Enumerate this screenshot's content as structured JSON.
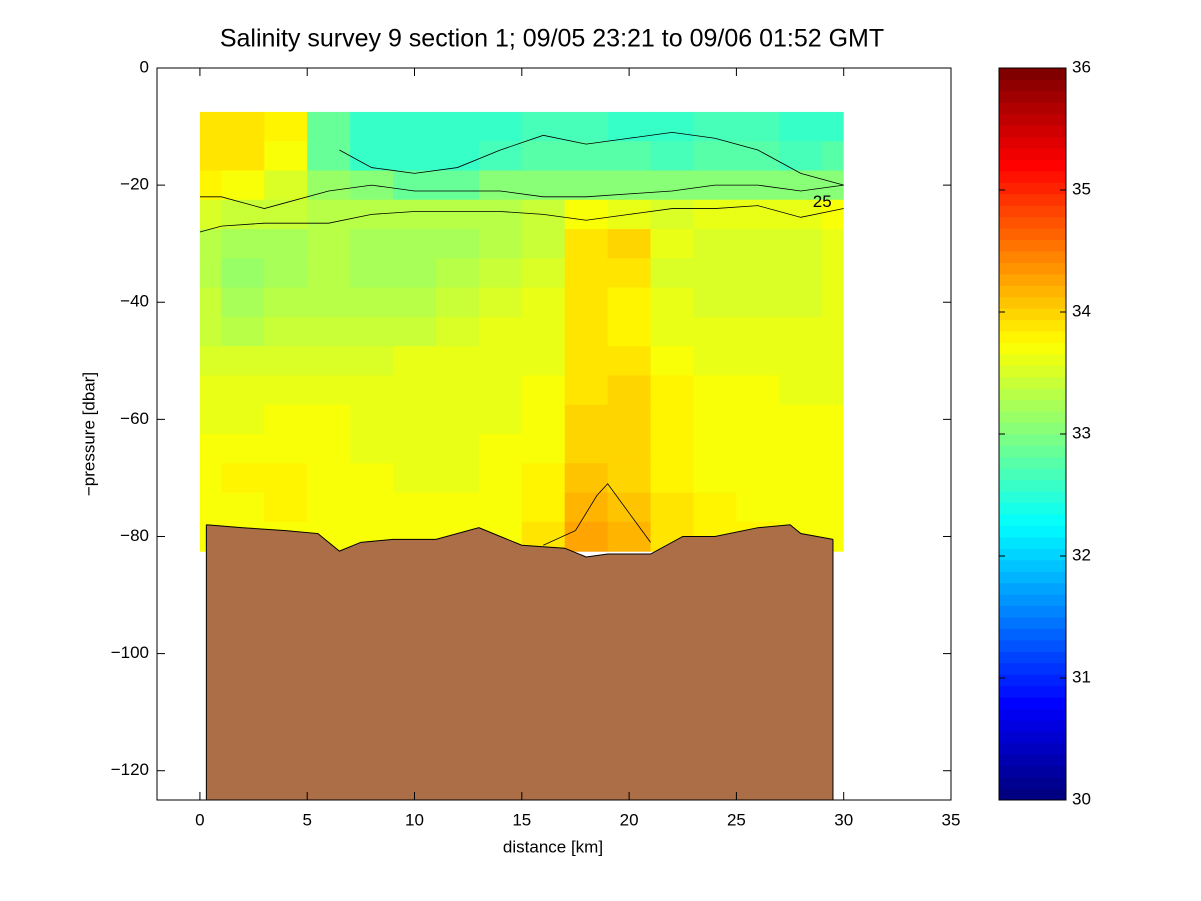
{
  "chart_data": {
    "type": "contourf",
    "title": "Salinity survey 9 section 1; 09/05 23:21 to 09/06 01:52 GMT",
    "x_label": "distance [km]",
    "y_label": "−pressure [dbar]",
    "xlim": [
      -2,
      35
    ],
    "ylim": [
      -125,
      0
    ],
    "xticks": [
      0,
      5,
      10,
      15,
      20,
      25,
      30,
      35
    ],
    "yticks": [
      {
        "value": -120,
        "label": "−120"
      },
      {
        "value": -100,
        "label": "−100"
      },
      {
        "value": -80,
        "label": "−80"
      },
      {
        "value": -60,
        "label": "−60"
      },
      {
        "value": -40,
        "label": "−40"
      },
      {
        "value": -20,
        "label": "−20"
      },
      0
    ],
    "clim": [
      30,
      36
    ],
    "cticks": [
      30,
      31,
      32,
      33,
      34,
      35,
      36
    ],
    "colormap": "jet",
    "x": [
      0,
      2,
      4,
      6,
      8,
      10,
      12,
      14,
      16,
      18,
      20,
      22,
      24,
      26,
      28,
      30
    ],
    "y": [
      -10,
      -15,
      -20,
      -25,
      -30,
      -35,
      -40,
      -45,
      -50,
      -55,
      -60,
      -65,
      -70,
      -75,
      -80
    ],
    "z": [
      [
        33.9,
        33.9,
        33.8,
        32.9,
        32.6,
        32.6,
        32.6,
        32.6,
        32.7,
        32.7,
        32.6,
        32.6,
        32.7,
        32.7,
        32.6,
        32.6
      ],
      [
        33.9,
        33.9,
        33.7,
        32.9,
        32.6,
        32.6,
        32.6,
        32.7,
        32.8,
        32.8,
        32.8,
        32.7,
        32.8,
        32.8,
        32.7,
        32.8
      ],
      [
        33.8,
        33.7,
        33.5,
        33.1,
        33.0,
        32.9,
        32.9,
        33.0,
        33.0,
        33.0,
        33.0,
        33.0,
        33.0,
        33.0,
        33.0,
        33.0
      ],
      [
        33.5,
        33.4,
        33.4,
        33.3,
        33.3,
        33.3,
        33.3,
        33.3,
        33.4,
        33.7,
        33.6,
        33.5,
        33.6,
        33.6,
        33.6,
        33.7
      ],
      [
        33.3,
        33.2,
        33.2,
        33.3,
        33.2,
        33.2,
        33.2,
        33.3,
        33.4,
        33.9,
        34.0,
        33.6,
        33.5,
        33.5,
        33.5,
        33.6
      ],
      [
        33.3,
        33.1,
        33.2,
        33.3,
        33.2,
        33.2,
        33.3,
        33.4,
        33.5,
        33.9,
        33.9,
        33.5,
        33.5,
        33.5,
        33.5,
        33.6
      ],
      [
        33.4,
        33.2,
        33.3,
        33.3,
        33.3,
        33.3,
        33.4,
        33.5,
        33.6,
        33.9,
        33.8,
        33.6,
        33.5,
        33.5,
        33.5,
        33.6
      ],
      [
        33.4,
        33.3,
        33.4,
        33.4,
        33.4,
        33.4,
        33.5,
        33.6,
        33.6,
        33.9,
        33.8,
        33.6,
        33.6,
        33.6,
        33.6,
        33.6
      ],
      [
        33.5,
        33.5,
        33.5,
        33.5,
        33.5,
        33.6,
        33.6,
        33.6,
        33.6,
        33.9,
        33.9,
        33.7,
        33.6,
        33.6,
        33.6,
        33.6
      ],
      [
        33.6,
        33.6,
        33.6,
        33.6,
        33.6,
        33.6,
        33.6,
        33.6,
        33.7,
        33.9,
        34.0,
        33.8,
        33.7,
        33.7,
        33.6,
        33.6
      ],
      [
        33.6,
        33.6,
        33.7,
        33.7,
        33.6,
        33.6,
        33.6,
        33.6,
        33.7,
        34.0,
        34.0,
        33.8,
        33.7,
        33.7,
        33.7,
        33.7
      ],
      [
        33.7,
        33.7,
        33.7,
        33.7,
        33.6,
        33.6,
        33.6,
        33.7,
        33.7,
        34.0,
        34.0,
        33.8,
        33.7,
        33.7,
        33.7,
        33.7
      ],
      [
        33.7,
        33.8,
        33.8,
        33.7,
        33.7,
        33.6,
        33.6,
        33.7,
        33.8,
        34.1,
        34.0,
        33.8,
        33.7,
        33.7,
        33.7,
        33.7
      ],
      [
        33.7,
        33.7,
        33.8,
        33.7,
        33.7,
        33.7,
        33.7,
        33.7,
        33.8,
        34.2,
        34.1,
        33.9,
        33.8,
        33.7,
        33.7,
        33.7
      ],
      [
        33.7,
        33.7,
        33.7,
        33.7,
        33.7,
        33.7,
        33.7,
        33.7,
        33.9,
        34.3,
        34.2,
        33.9,
        33.8,
        33.8,
        33.7,
        33.7
      ]
    ],
    "bottom": {
      "color": "#ab6e47",
      "x": [
        0.3,
        2,
        4,
        5.5,
        6,
        6.5,
        7.5,
        9,
        11,
        13,
        14,
        15,
        17,
        18,
        19,
        21,
        22.5,
        24,
        26,
        27.5,
        28,
        29.5
      ],
      "y": [
        -78,
        -78.5,
        -79,
        -79.5,
        -81,
        -82.5,
        -81,
        -80.5,
        -80.5,
        -78.5,
        -80,
        -81.5,
        -82,
        -83.5,
        -83,
        -83,
        -80,
        -80,
        -78.5,
        -78,
        -79.5,
        -80.5
      ]
    },
    "contours": [
      {
        "x": [
          6.5,
          8,
          10,
          12,
          14,
          16,
          18,
          20,
          22,
          24,
          26,
          28,
          30
        ],
        "y": [
          -14,
          -17,
          -18,
          -17,
          -14,
          -11.5,
          -13,
          -12,
          -11,
          -12,
          -14,
          -18,
          -20
        ]
      },
      {
        "x": [
          0,
          1,
          3,
          4,
          6,
          8,
          10,
          12,
          14,
          16,
          18,
          20,
          22,
          24,
          26,
          28,
          30
        ],
        "y": [
          -22,
          -22,
          -24,
          -23,
          -21,
          -20,
          -21,
          -21,
          -21,
          -22,
          -22,
          -21.5,
          -21,
          -20,
          -20,
          -21,
          -20
        ]
      },
      {
        "x": [
          0,
          1,
          3,
          5,
          6,
          8,
          10,
          12,
          14,
          16,
          18,
          20,
          22,
          24,
          26,
          28,
          30
        ],
        "y": [
          -28,
          -27,
          -26.5,
          -26.5,
          -26.5,
          -25,
          -24.5,
          -24.5,
          -24.5,
          -25,
          -26,
          -25,
          -24,
          -24,
          -23.5,
          -25.5,
          -24
        ]
      },
      {
        "x": [
          16,
          17.5,
          18.5,
          19,
          20,
          21
        ],
        "y": [
          -81.5,
          -79,
          -73,
          -71,
          -76,
          -81
        ]
      }
    ],
    "contour_labels": [
      {
        "text": "25",
        "x": 29,
        "y": -23
      }
    ]
  }
}
